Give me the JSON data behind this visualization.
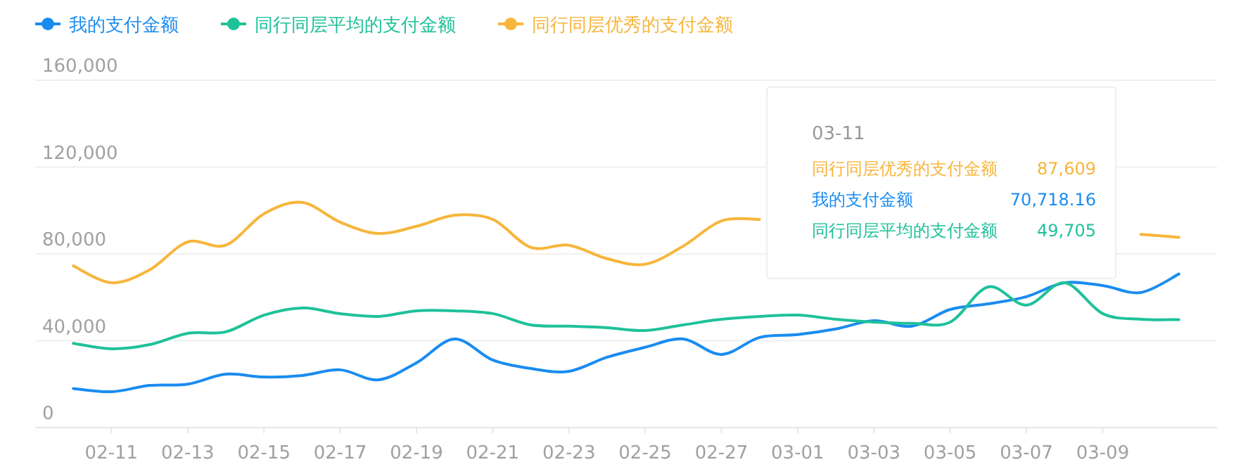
{
  "chart_data": {
    "type": "line",
    "categories": [
      null,
      "02-11",
      null,
      "02-13",
      null,
      "02-15",
      null,
      "02-17",
      null,
      "02-19",
      null,
      "02-21",
      null,
      "02-23",
      null,
      "02-25",
      null,
      "02-27",
      null,
      "03-01",
      null,
      "03-03",
      null,
      "03-05",
      null,
      "03-07",
      null,
      "03-09",
      null,
      null
    ],
    "series": [
      {
        "name": "我的支付金额",
        "color": "#1a8cf0",
        "values": [
          18000,
          16500,
          19400,
          20000,
          24600,
          23300,
          24000,
          26600,
          22000,
          29800,
          40800,
          31100,
          27200,
          25900,
          32400,
          37000,
          40800,
          33700,
          41500,
          42800,
          45400,
          49200,
          46700,
          54400,
          57000,
          60300,
          66700,
          65400,
          62200,
          70718.16
        ]
      },
      {
        "name": "同行同层平均的支付金额",
        "color": "#1fc19a",
        "values": [
          38800,
          36300,
          38200,
          43400,
          44100,
          51800,
          55100,
          52500,
          51200,
          53800,
          53800,
          52500,
          47300,
          46700,
          46000,
          44700,
          47300,
          49900,
          51200,
          51800,
          49900,
          48600,
          48000,
          48600,
          64800,
          56400,
          66700,
          52500,
          49900,
          49705
        ]
      },
      {
        "name": "同行同层优秀的支付金额",
        "color": "#f7b53b",
        "values": [
          74500,
          66700,
          72600,
          85500,
          84000,
          98500,
          103700,
          94600,
          89400,
          92700,
          97800,
          95900,
          83000,
          84000,
          77800,
          75200,
          83600,
          95200,
          95900,
          null,
          null,
          null,
          null,
          null,
          null,
          null,
          null,
          null,
          89000,
          87609
        ]
      }
    ],
    "ylim": [
      0,
      160000
    ],
    "yticks": [
      0,
      {
        "value": 40000,
        "label": "40,000"
      },
      {
        "value": 80000,
        "label": "80,000"
      },
      {
        "value": 120000,
        "label": "120,000"
      },
      {
        "value": 160000,
        "label": "160,000"
      }
    ],
    "grid": "y",
    "legend": "top left",
    "marker": "none",
    "line_style": "solid",
    "annotations": [
      "03-11",
      "87,609",
      "70,718.16",
      "49,705"
    ]
  }
}
